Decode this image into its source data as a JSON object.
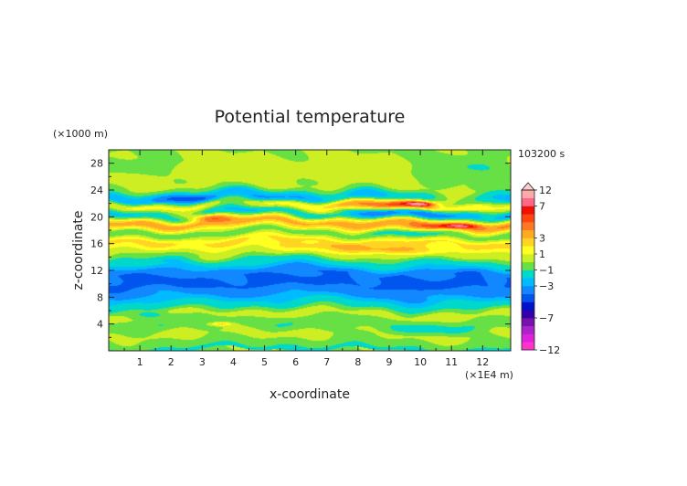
{
  "chart_data": {
    "type": "heatmap",
    "title": "Potential temperature",
    "xlabel": "x-coordinate",
    "ylabel": "z-coordinate",
    "x_unit": "(×1E4 m)",
    "y_unit": "(×1000 m)",
    "time_label": "103200 s",
    "xlim": [
      0,
      12.9
    ],
    "ylim": [
      0,
      30
    ],
    "x_ticks": [
      1,
      2,
      3,
      4,
      5,
      6,
      7,
      8,
      9,
      10,
      11,
      12
    ],
    "y_ticks": [
      4,
      8,
      12,
      16,
      20,
      24,
      28
    ],
    "colorbar": {
      "levels": [
        -12,
        -11,
        -9,
        -8,
        -7,
        -6,
        -5,
        -4,
        -3,
        -2,
        -1,
        0,
        1,
        2,
        3,
        4,
        5,
        6,
        7,
        8,
        12
      ],
      "colors": [
        "#ff33cc",
        "#dd22dd",
        "#aa22cc",
        "#7711aa",
        "#3300aa",
        "#0011cc",
        "#0055ee",
        "#1188ff",
        "#00bbff",
        "#00d8cc",
        "#66e044",
        "#ccee22",
        "#ffff22",
        "#ffd522",
        "#ffaa22",
        "#ff7722",
        "#ff4411",
        "#ee1100",
        "#ff6688",
        "#ffaaaa"
      ],
      "labels": [
        -12,
        -7,
        -3,
        -1,
        1,
        3,
        7,
        12
      ],
      "extend_max": true
    },
    "bands": [
      {
        "z": 0.0,
        "v": -1.8
      },
      {
        "z": 1.0,
        "v": -0.6
      },
      {
        "z": 2.5,
        "v": 0.3
      },
      {
        "z": 4.0,
        "v": -0.8
      },
      {
        "z": 5.5,
        "v": 0.4
      },
      {
        "z": 7.0,
        "v": -1.7
      },
      {
        "z": 8.5,
        "v": -3.2
      },
      {
        "z": 10.0,
        "v": -4.3
      },
      {
        "z": 11.5,
        "v": -3.9
      },
      {
        "z": 13.0,
        "v": -1.7
      },
      {
        "z": 14.5,
        "v": 0.5
      },
      {
        "z": 16.2,
        "v": 2.2
      },
      {
        "z": 17.5,
        "v": -0.6
      },
      {
        "z": 19.0,
        "v": 3.4
      },
      {
        "z": 20.5,
        "v": -1.9
      },
      {
        "z": 21.7,
        "v": 1.2
      },
      {
        "z": 22.8,
        "v": -2.6
      },
      {
        "z": 24.5,
        "v": 0.1
      },
      {
        "z": 26.5,
        "v": 0.5
      },
      {
        "z": 28.5,
        "v": 0.2
      },
      {
        "z": 30.0,
        "v": 0.0
      }
    ],
    "features": [
      {
        "x": 3.0,
        "z": 19.9,
        "r": 0.9,
        "rz": 0.5,
        "v": 3.0
      },
      {
        "x": 7.0,
        "z": 20.6,
        "r": 0.7,
        "rz": 0.4,
        "v": 2.0
      },
      {
        "x": 9.5,
        "z": 21.9,
        "r": 2.6,
        "rz": 0.9,
        "v": 4.0
      },
      {
        "x": 10.0,
        "z": 21.9,
        "r": 0.5,
        "rz": 0.3,
        "v": 4.0
      },
      {
        "x": 9.8,
        "z": 20.5,
        "r": 2.5,
        "rz": 0.7,
        "v": -2.5
      },
      {
        "x": 10.8,
        "z": 18.6,
        "r": 2.0,
        "rz": 0.6,
        "v": 2.0
      },
      {
        "x": 11.2,
        "z": 18.6,
        "r": 0.6,
        "rz": 0.3,
        "v": 3.0
      },
      {
        "x": 6.5,
        "z": 15.6,
        "r": 1.2,
        "rz": 0.5,
        "v": 1.5
      },
      {
        "x": 8.9,
        "z": 15.0,
        "r": 2.0,
        "rz": 0.6,
        "v": 2.0
      },
      {
        "x": 3.6,
        "z": 4.0,
        "r": 0.4,
        "rz": 0.3,
        "v": 3.0
      },
      {
        "x": 11.5,
        "z": 27.0,
        "r": 1.6,
        "rz": 2.0,
        "v": -1.3
      },
      {
        "x": 1.0,
        "z": 27.5,
        "r": 1.1,
        "rz": 1.2,
        "v": -1.1
      },
      {
        "x": 2.0,
        "z": 14.2,
        "r": 1.0,
        "rz": 0.8,
        "v": -1.2
      },
      {
        "x": 1.5,
        "z": 5.3,
        "r": 0.8,
        "rz": 0.5,
        "v": -1.5
      },
      {
        "x": 2.5,
        "z": 22.8,
        "r": 1.5,
        "rz": 0.6,
        "v": -1.3
      },
      {
        "x": 4.5,
        "z": 22.5,
        "r": 2.0,
        "rz": 0.6,
        "v": -1.2
      },
      {
        "x": 9.8,
        "z": 17.5,
        "r": 1.0,
        "rz": 0.5,
        "v": -1.2
      },
      {
        "x": 10.0,
        "z": 3.0,
        "r": 2.0,
        "rz": 0.8,
        "v": -0.8
      }
    ]
  }
}
